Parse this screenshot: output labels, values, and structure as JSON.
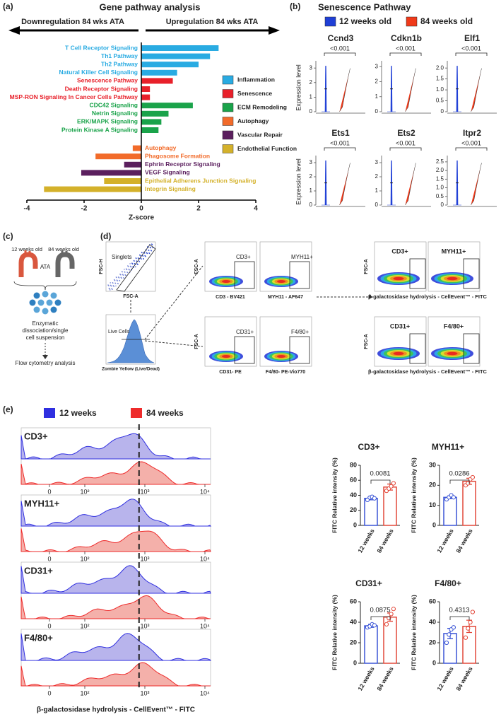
{
  "panel_labels": [
    "(a)",
    "(b)",
    "(c)",
    "(d)",
    "(e)"
  ],
  "chart_data": [
    {
      "type": "hbar",
      "title": "Gene pathway analysis",
      "arrow_labels": [
        "Downregulation 84 wks ATA",
        "Upregulation 84 wks ATA"
      ],
      "xlabel": "Z-score",
      "categories": [
        "T Cell Receptor Signaling",
        "Th1 Pathway",
        "Th2 Pathway",
        "Natural Killer Cell Signaling",
        "Senescence Pathway",
        "Death Receptor Signaling",
        "MSP-RON Signaling In Cancer Cells Pathway",
        "CDC42 Signaling",
        "Netrin Signaling",
        "ERK/MAPK Signaling",
        "Protein Kinase A Signaling",
        "Autophagy",
        "Phagosome Formation",
        "Ephrin Receptor Signaling",
        "VEGF Signaling",
        "Epithelial Adherens Junction Signaling",
        "Integrin Signaling"
      ],
      "series": [
        {
          "name": "Inflammation",
          "color": "#29abe2",
          "values": [
            2.7,
            2.4,
            2.0,
            1.25,
            null,
            null,
            null,
            null,
            null,
            null,
            null,
            null,
            null,
            null,
            null,
            null,
            null
          ]
        },
        {
          "name": "Senescence",
          "color": "#e8202a",
          "values": [
            null,
            null,
            null,
            null,
            1.1,
            0.3,
            0.3,
            null,
            null,
            null,
            null,
            null,
            null,
            null,
            null,
            null,
            null
          ]
        },
        {
          "name": "ECM Remodeling",
          "color": "#1aa34a",
          "values": [
            null,
            null,
            null,
            null,
            null,
            null,
            null,
            1.8,
            0.95,
            0.7,
            0.6,
            null,
            null,
            null,
            null,
            null,
            null
          ]
        },
        {
          "name": "Autophagy",
          "color": "#f26b2a",
          "values": [
            null,
            null,
            null,
            null,
            null,
            null,
            null,
            null,
            null,
            null,
            null,
            -0.3,
            -1.6,
            null,
            null,
            null,
            null
          ]
        },
        {
          "name": "Vascular Repair",
          "color": "#5b1f5e",
          "values": [
            null,
            null,
            null,
            null,
            null,
            null,
            null,
            null,
            null,
            null,
            null,
            null,
            null,
            -0.6,
            -2.1,
            null,
            null
          ]
        },
        {
          "name": "Endothelial Function",
          "color": "#d4b12a",
          "values": [
            null,
            null,
            null,
            null,
            null,
            null,
            null,
            null,
            null,
            null,
            null,
            null,
            null,
            null,
            null,
            -1.3,
            -3.4
          ]
        }
      ],
      "xlim": [
        -4,
        4
      ],
      "xticks": [
        -4,
        -2,
        0,
        2,
        4
      ],
      "legend_position": "right"
    },
    {
      "type": "violin",
      "title": "Ccnd3",
      "p_label": "<0.001",
      "ylabel": "Expression level",
      "ylim": [
        0,
        3.3
      ],
      "yticks": [
        0,
        1,
        2,
        3
      ]
    },
    {
      "type": "violin",
      "title": "Cdkn1b",
      "p_label": "<0.001",
      "ylim": [
        0,
        3.2
      ],
      "yticks": [
        0,
        1,
        2,
        3
      ]
    },
    {
      "type": "violin",
      "title": "Elf1",
      "p_label": "<0.001",
      "ylim": [
        0,
        2.2
      ],
      "yticks": [
        0,
        0.5,
        {
          "value": 1,
          "label": "1.0"
        },
        1.5,
        {
          "value": 2,
          "label": "2.0"
        }
      ]
    },
    {
      "type": "violin",
      "title": "Ets1",
      "p_label": "<0.001",
      "ylabel": "Expression level",
      "ylim": [
        0,
        3.3
      ],
      "yticks": [
        0,
        1,
        2,
        3
      ]
    },
    {
      "type": "violin",
      "title": "Ets2",
      "p_label": "<0.001",
      "ylim": [
        0,
        3.3
      ],
      "yticks": [
        0,
        1,
        2,
        3
      ]
    },
    {
      "type": "violin",
      "title": "Itpr2",
      "p_label": "<0.001",
      "ylim": [
        0,
        2.7
      ],
      "yticks": [
        0,
        0.5,
        {
          "value": 1,
          "label": "1.0"
        },
        1.5,
        {
          "value": 2,
          "label": "2.0"
        },
        2.5
      ]
    },
    {
      "type": "density",
      "panels": [
        "CD3+",
        "MYH11+",
        "CD31+",
        "F4/80+"
      ],
      "series": [
        {
          "name": "12 weeks",
          "color": "#2f2fe0"
        },
        {
          "name": "84 weeks",
          "color": "#ee2b2b"
        }
      ],
      "xticks": [
        0,
        {
          "value": 100,
          "label": "10²"
        },
        {
          "value": 1000,
          "label": "10³"
        },
        {
          "value": 10000,
          "label": "10⁴"
        }
      ],
      "reference_line": 800,
      "xlabel": "β-galactosidase hydrolysis - CellEvent™ - FITC"
    },
    {
      "type": "bar",
      "title": "CD3+",
      "ylabel": "FITC Relative intensity (%)",
      "categories": [
        "12 weeks",
        "84 weeks"
      ],
      "values": [
        36,
        51
      ],
      "errors": [
        2,
        4
      ],
      "points": [
        [
          34,
          37,
          38,
          36
        ],
        [
          46,
          49,
          52,
          56
        ]
      ],
      "colors": [
        "#3b55d6",
        "#e2483a"
      ],
      "ylim": [
        0,
        80
      ],
      "yticks": [
        0,
        20,
        40,
        60,
        80
      ],
      "p_value": 0.0081
    },
    {
      "type": "bar",
      "title": "MYH11+",
      "ylabel": "FITC Relative intensity (%)",
      "categories": [
        "12 weeks",
        "84 weeks"
      ],
      "values": [
        14,
        22
      ],
      "errors": [
        0.7,
        1.5
      ],
      "points": [
        [
          13,
          14,
          15,
          14
        ],
        [
          20,
          21,
          23,
          24
        ]
      ],
      "colors": [
        "#3b55d6",
        "#e2483a"
      ],
      "ylim": [
        0,
        30
      ],
      "yticks": [
        0,
        10,
        20,
        30
      ],
      "p_value": 0.0286
    },
    {
      "type": "bar",
      "title": "CD31+",
      "ylabel": "FITC Relative intensity (%)",
      "categories": [
        "12 weeks",
        "84 weeks"
      ],
      "values": [
        36.5,
        45
      ],
      "errors": [
        1.5,
        4
      ],
      "points": [
        [
          35,
          36,
          38,
          37
        ],
        [
          38,
          44,
          48,
          53
        ]
      ],
      "colors": [
        "#3b55d6",
        "#e2483a"
      ],
      "ylim": [
        0,
        60
      ],
      "yticks": [
        0,
        20,
        40,
        60
      ],
      "p_value": 0.0875
    },
    {
      "type": "bar",
      "title": "F4/80+",
      "ylabel": "FITC Relative intensity (%)",
      "categories": [
        "12 weeks",
        "84 weeks"
      ],
      "values": [
        29,
        36
      ],
      "errors": [
        5,
        6
      ],
      "points": [
        [
          20,
          28,
          33,
          35
        ],
        [
          25,
          34,
          40,
          50
        ]
      ],
      "colors": [
        "#3b55d6",
        "#e2483a"
      ],
      "ylim": [
        0,
        60
      ],
      "yticks": [
        0,
        20,
        40,
        60
      ],
      "p_value": 0.4313
    }
  ],
  "violin_header": {
    "title": "Senescence Pathway",
    "legend": [
      {
        "name": "12 weeks old",
        "color": "#1f3fd6"
      },
      {
        "name": "84 weeks old",
        "color": "#f03a1a"
      }
    ]
  },
  "diagram": {
    "ages": [
      "12 weeks old",
      "84 weeks old"
    ],
    "tissue": "ATA",
    "step": [
      "Enzymatic",
      "dissociation/single",
      "cell suspension"
    ],
    "analysis": "Flow cytometry analysis"
  },
  "flow_cytometry": {
    "singlets": {
      "gate": "Singlets",
      "ylabel": "FSC-H",
      "xlabel": "FSC-A"
    },
    "live": {
      "gate": "Live Cells",
      "xlabel": "Zombie Yellow (Live/Dead)"
    },
    "marker_ylabel": "FSC-A",
    "markers": [
      {
        "gate": "CD3+",
        "xlabel": "CD3 - BV421"
      },
      {
        "gate": "MYH11+",
        "xlabel": "MYH11 - AF647"
      },
      {
        "gate": "CD31+",
        "xlabel": "CD31- PE"
      },
      {
        "gate": "F4/80+",
        "xlabel": "F4/80- PE-Vio770"
      }
    ],
    "senescence": {
      "gates": [
        "CD3+",
        "MYH11+",
        "CD31+",
        "F4/80+"
      ],
      "xlabel": "β-galactosidase hydrolysis - CellEvent™ - FITC",
      "ylabel": "FSC-A"
    }
  }
}
